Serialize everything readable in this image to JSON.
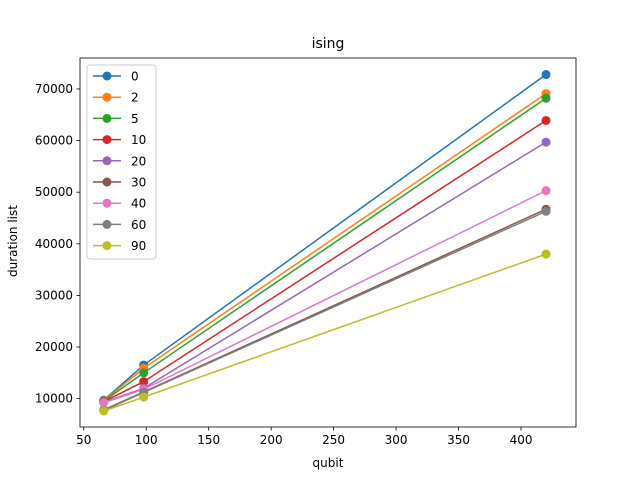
{
  "chart_data": {
    "type": "line",
    "title": "ising",
    "xlabel": "qubit",
    "ylabel": "duration list",
    "xlim": [
      47,
      444
    ],
    "ylim": [
      4500,
      76000
    ],
    "xticks": [
      50,
      100,
      150,
      200,
      250,
      300,
      350,
      400
    ],
    "yticks": [
      10000,
      20000,
      30000,
      40000,
      50000,
      60000,
      70000
    ],
    "x": [
      66,
      98,
      420
    ],
    "grid": false,
    "legend_position": "top-left",
    "series": [
      {
        "name": "0",
        "color": "#1f77b4",
        "values": [
          9700,
          16500,
          72800
        ]
      },
      {
        "name": "2",
        "color": "#ff7f0e",
        "values": [
          9600,
          15900,
          69100
        ]
      },
      {
        "name": "5",
        "color": "#2ca02c",
        "values": [
          9500,
          15000,
          68200
        ]
      },
      {
        "name": "10",
        "color": "#d62728",
        "values": [
          9400,
          13300,
          63900
        ]
      },
      {
        "name": "20",
        "color": "#9467bd",
        "values": [
          9300,
          12000,
          59700
        ]
      },
      {
        "name": "30",
        "color": "#8c564b",
        "values": [
          7800,
          11300,
          46700
        ]
      },
      {
        "name": "40",
        "color": "#e377c2",
        "values": [
          9200,
          11800,
          50300
        ]
      },
      {
        "name": "60",
        "color": "#7f7f7f",
        "values": [
          7700,
          11200,
          46300
        ]
      },
      {
        "name": "90",
        "color": "#bcbd22",
        "values": [
          7600,
          10300,
          38000
        ]
      }
    ]
  }
}
